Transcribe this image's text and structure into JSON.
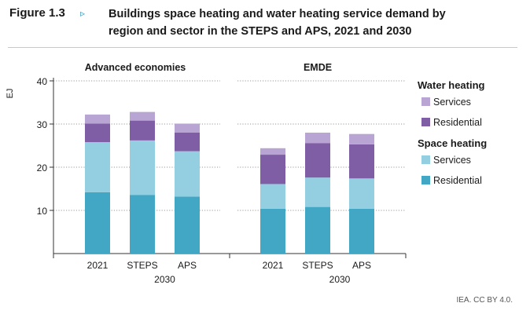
{
  "figure": {
    "label": "Figure 1.3",
    "arrow": "▹",
    "title_line1": "Buildings space heating and water heating service demand by",
    "title_line2": "region and sector in the STEPS and APS, 2021 and 2030",
    "credit": "IEA. CC BY 4.0."
  },
  "chart_data": {
    "type": "bar",
    "stacked": true,
    "ylabel": "EJ",
    "ylim": [
      0,
      40
    ],
    "yticks": [
      10,
      20,
      30,
      40
    ],
    "grid": true,
    "panels": [
      {
        "title": "Advanced economies",
        "categories": [
          "2021",
          "STEPS",
          "APS"
        ],
        "group_label": "2030",
        "series": [
          {
            "name": "Space heating Residential",
            "values": [
              14.2,
              13.6,
              13.2
            ]
          },
          {
            "name": "Space heating Services",
            "values": [
              11.6,
              12.6,
              10.5
            ]
          },
          {
            "name": "Water heating Residential",
            "values": [
              4.3,
              4.6,
              4.3
            ]
          },
          {
            "name": "Water heating Services",
            "values": [
              2.1,
              2.0,
              2.1
            ]
          }
        ]
      },
      {
        "title": "EMDE",
        "categories": [
          "2021",
          "STEPS",
          "APS"
        ],
        "group_label": "2030",
        "series": [
          {
            "name": "Space heating Residential",
            "values": [
              10.4,
              10.8,
              10.4
            ]
          },
          {
            "name": "Space heating Services",
            "values": [
              5.7,
              6.8,
              7.0
            ]
          },
          {
            "name": "Water heating Residential",
            "values": [
              6.8,
              8.0,
              7.9
            ]
          },
          {
            "name": "Water heating Services",
            "values": [
              1.5,
              2.4,
              2.4
            ]
          }
        ]
      }
    ],
    "legend": {
      "position": "right",
      "groups": [
        {
          "title": "Water heating",
          "items": [
            {
              "label": "Services",
              "color": "#b9a5d3"
            },
            {
              "label": "Residential",
              "color": "#7f5ea6"
            }
          ]
        },
        {
          "title": "Space heating",
          "items": [
            {
              "label": "Services",
              "color": "#93cfe0"
            },
            {
              "label": "Residential",
              "color": "#42a7c4"
            }
          ]
        }
      ]
    },
    "series_colors": [
      "#42a7c4",
      "#93cfe0",
      "#7f5ea6",
      "#b9a5d3"
    ]
  }
}
